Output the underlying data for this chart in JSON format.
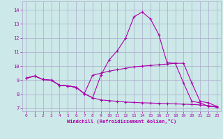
{
  "bg_color": "#cce8e8",
  "grid_color": "#aaaacc",
  "line_color": "#aa00aa",
  "xlabel": "Windchill (Refroidissement éolien,°C)",
  "xlim": [
    -0.5,
    23.5
  ],
  "ylim": [
    6.8,
    14.6
  ],
  "yticks": [
    7,
    8,
    9,
    10,
    11,
    12,
    13,
    14
  ],
  "xticks": [
    0,
    1,
    2,
    3,
    4,
    5,
    6,
    7,
    8,
    9,
    10,
    11,
    12,
    13,
    14,
    15,
    16,
    17,
    18,
    19,
    20,
    21,
    22,
    23
  ],
  "line1_x": [
    0,
    1,
    2,
    3,
    4,
    5,
    6,
    7,
    8,
    9,
    10,
    11,
    12,
    13,
    14,
    15,
    16,
    17,
    18,
    19,
    20,
    21,
    22,
    23
  ],
  "line1_y": [
    9.15,
    9.3,
    9.05,
    9.0,
    8.65,
    8.6,
    8.5,
    8.05,
    7.75,
    9.35,
    10.45,
    11.1,
    12.0,
    13.5,
    13.85,
    13.35,
    12.25,
    10.25,
    10.2,
    8.8,
    7.5,
    7.4,
    7.15,
    7.1
  ],
  "line2_x": [
    0,
    1,
    2,
    3,
    4,
    5,
    6,
    7,
    8,
    9,
    10,
    11,
    12,
    13,
    14,
    15,
    16,
    17,
    18,
    19,
    20,
    21,
    22,
    23
  ],
  "line2_y": [
    9.15,
    9.3,
    9.05,
    9.0,
    8.65,
    8.6,
    8.5,
    8.05,
    9.35,
    9.5,
    9.65,
    9.75,
    9.85,
    9.95,
    10.0,
    10.05,
    10.1,
    10.15,
    10.2,
    10.2,
    8.8,
    7.5,
    7.4,
    7.15
  ],
  "line3_x": [
    0,
    1,
    2,
    3,
    4,
    5,
    6,
    7,
    8,
    9,
    10,
    11,
    12,
    13,
    14,
    15,
    16,
    17,
    18,
    19,
    20,
    21,
    22,
    23
  ],
  "line3_y": [
    9.15,
    9.3,
    9.05,
    9.0,
    8.65,
    8.6,
    8.5,
    8.05,
    7.75,
    7.6,
    7.55,
    7.5,
    7.45,
    7.42,
    7.4,
    7.38,
    7.36,
    7.34,
    7.32,
    7.3,
    7.28,
    7.25,
    7.2,
    7.1
  ]
}
